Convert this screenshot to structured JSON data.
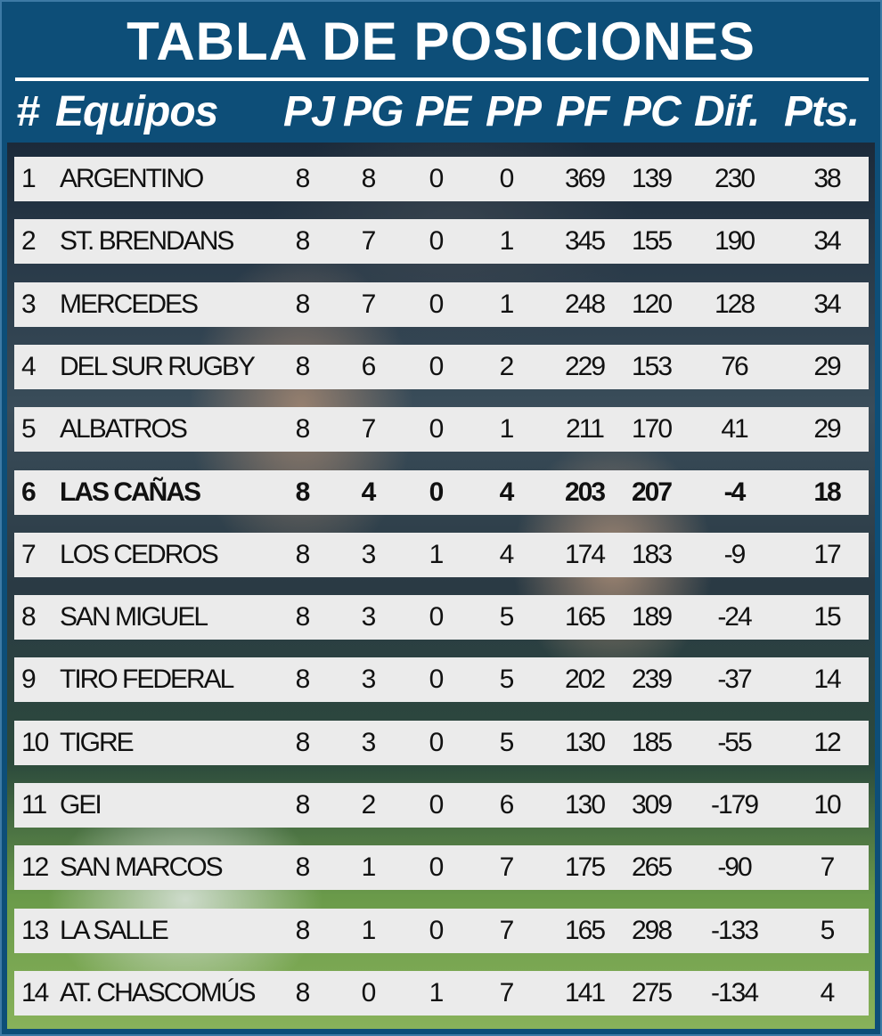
{
  "title": "TABLA DE POSICIONES",
  "headers": {
    "pos": "#",
    "team": "Equipos",
    "pj": "PJ",
    "pg": "PG",
    "pe": "PE",
    "pp": "PP",
    "pf": "PF",
    "pc": "PC",
    "dif": "Dif.",
    "pts": "Pts."
  },
  "highlight_position": "6",
  "colors": {
    "frame": "#0d4e78",
    "row": "#ebebeb",
    "text": "#111111",
    "header_text": "#ffffff"
  },
  "rows": [
    {
      "pos": "1",
      "team": "ARGENTINO",
      "pj": "8",
      "pg": "8",
      "pe": "0",
      "pp": "0",
      "pf": "369",
      "pc": "139",
      "dif": "230",
      "pts": "38"
    },
    {
      "pos": "2",
      "team": "ST. BRENDANS",
      "pj": "8",
      "pg": "7",
      "pe": "0",
      "pp": "1",
      "pf": "345",
      "pc": "155",
      "dif": "190",
      "pts": "34"
    },
    {
      "pos": "3",
      "team": "MERCEDES",
      "pj": "8",
      "pg": "7",
      "pe": "0",
      "pp": "1",
      "pf": "248",
      "pc": "120",
      "dif": "128",
      "pts": "34"
    },
    {
      "pos": "4",
      "team": "DEL SUR RUGBY",
      "pj": "8",
      "pg": "6",
      "pe": "0",
      "pp": "2",
      "pf": "229",
      "pc": "153",
      "dif": "76",
      "pts": "29"
    },
    {
      "pos": "5",
      "team": "ALBATROS",
      "pj": "8",
      "pg": "7",
      "pe": "0",
      "pp": "1",
      "pf": "211",
      "pc": "170",
      "dif": "41",
      "pts": "29"
    },
    {
      "pos": "6",
      "team": "LAS CAÑAS",
      "pj": "8",
      "pg": "4",
      "pe": "0",
      "pp": "4",
      "pf": "203",
      "pc": "207",
      "dif": "-4",
      "pts": "18"
    },
    {
      "pos": "7",
      "team": "LOS CEDROS",
      "pj": "8",
      "pg": "3",
      "pe": "1",
      "pp": "4",
      "pf": "174",
      "pc": "183",
      "dif": "-9",
      "pts": "17"
    },
    {
      "pos": "8",
      "team": "SAN MIGUEL",
      "pj": "8",
      "pg": "3",
      "pe": "0",
      "pp": "5",
      "pf": "165",
      "pc": "189",
      "dif": "-24",
      "pts": "15"
    },
    {
      "pos": "9",
      "team": "TIRO FEDERAL",
      "pj": "8",
      "pg": "3",
      "pe": "0",
      "pp": "5",
      "pf": "202",
      "pc": "239",
      "dif": "-37",
      "pts": "14"
    },
    {
      "pos": "10",
      "team": "TIGRE",
      "pj": "8",
      "pg": "3",
      "pe": "0",
      "pp": "5",
      "pf": "130",
      "pc": "185",
      "dif": "-55",
      "pts": "12"
    },
    {
      "pos": "11",
      "team": "GEI",
      "pj": "8",
      "pg": "2",
      "pe": "0",
      "pp": "6",
      "pf": "130",
      "pc": "309",
      "dif": "-179",
      "pts": "10"
    },
    {
      "pos": "12",
      "team": "SAN MARCOS",
      "pj": "8",
      "pg": "1",
      "pe": "0",
      "pp": "7",
      "pf": "175",
      "pc": "265",
      "dif": "-90",
      "pts": "7"
    },
    {
      "pos": "13",
      "team": "LA SALLE",
      "pj": "8",
      "pg": "1",
      "pe": "0",
      "pp": "7",
      "pf": "165",
      "pc": "298",
      "dif": "-133",
      "pts": "5"
    },
    {
      "pos": "14",
      "team": "AT. CHASCOMÚS",
      "pj": "8",
      "pg": "0",
      "pe": "1",
      "pp": "7",
      "pf": "141",
      "pc": "275",
      "dif": "-134",
      "pts": "4"
    }
  ]
}
